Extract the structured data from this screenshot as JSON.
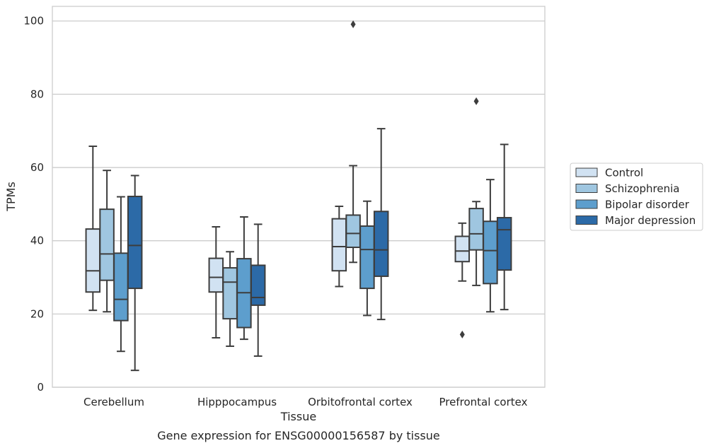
{
  "chart_data": {
    "type": "box",
    "title": "",
    "caption": "Gene expression for ENSG00000156587 by tissue",
    "xlabel": "Tissue",
    "ylabel": "TPMs",
    "ylim": [
      0,
      104
    ],
    "yticks": [
      0,
      20,
      40,
      60,
      80,
      100
    ],
    "grid": "horizontal",
    "legend_position": "right",
    "categories": [
      "Cerebellum",
      "Hipppocampus",
      "Orbitofrontal cortex",
      "Prefrontal cortex"
    ],
    "series": [
      {
        "name": "Control",
        "color": "#d1e2f2",
        "boxes": [
          {
            "whisker_low": 21,
            "q1": 26,
            "median": 31.8,
            "q3": 43.2,
            "whisker_high": 65.8,
            "outliers": []
          },
          {
            "whisker_low": 13.5,
            "q1": 26,
            "median": 30,
            "q3": 35.2,
            "whisker_high": 43.8,
            "outliers": []
          },
          {
            "whisker_low": 27.5,
            "q1": 31.8,
            "median": 38.4,
            "q3": 46,
            "whisker_high": 49.4,
            "outliers": []
          },
          {
            "whisker_low": 29,
            "q1": 34.3,
            "median": 37.2,
            "q3": 41.2,
            "whisker_high": 44.8,
            "outliers": [
              14.4
            ]
          }
        ]
      },
      {
        "name": "Schizophrenia",
        "color": "#9fc6e0",
        "boxes": [
          {
            "whisker_low": 20.6,
            "q1": 29.2,
            "median": 36.4,
            "q3": 48.6,
            "whisker_high": 59.2,
            "outliers": []
          },
          {
            "whisker_low": 11.2,
            "q1": 18.7,
            "median": 28.7,
            "q3": 32.6,
            "whisker_high": 37,
            "outliers": []
          },
          {
            "whisker_low": 34.1,
            "q1": 38.2,
            "median": 42,
            "q3": 47,
            "whisker_high": 60.5,
            "outliers": [
              99.1
            ]
          },
          {
            "whisker_low": 27.8,
            "q1": 37.5,
            "median": 41.9,
            "q3": 48.8,
            "whisker_high": 50.7,
            "outliers": [
              78.1
            ]
          }
        ]
      },
      {
        "name": "Bipolar disorder",
        "color": "#5d9ecd",
        "boxes": [
          {
            "whisker_low": 9.8,
            "q1": 18.2,
            "median": 24,
            "q3": 36.6,
            "whisker_high": 52,
            "outliers": []
          },
          {
            "whisker_low": 13.1,
            "q1": 16.3,
            "median": 25.8,
            "q3": 35.1,
            "whisker_high": 46.5,
            "outliers": []
          },
          {
            "whisker_low": 19.6,
            "q1": 27,
            "median": 37.6,
            "q3": 44,
            "whisker_high": 50.8,
            "outliers": []
          },
          {
            "whisker_low": 20.6,
            "q1": 28.3,
            "median": 37.3,
            "q3": 45.3,
            "whisker_high": 56.7,
            "outliers": []
          }
        ]
      },
      {
        "name": "Major depression",
        "color": "#2c6aa7",
        "boxes": [
          {
            "whisker_low": 4.6,
            "q1": 27,
            "median": 38.7,
            "q3": 52.1,
            "whisker_high": 57.8,
            "outliers": []
          },
          {
            "whisker_low": 8.5,
            "q1": 22.4,
            "median": 24.5,
            "q3": 33.3,
            "whisker_high": 44.5,
            "outliers": []
          },
          {
            "whisker_low": 18.5,
            "q1": 30.3,
            "median": 37.5,
            "q3": 48,
            "whisker_high": 70.6,
            "outliers": []
          },
          {
            "whisker_low": 21.2,
            "q1": 32,
            "median": 43,
            "q3": 46.3,
            "whisker_high": 66.3,
            "outliers": []
          }
        ]
      }
    ]
  }
}
